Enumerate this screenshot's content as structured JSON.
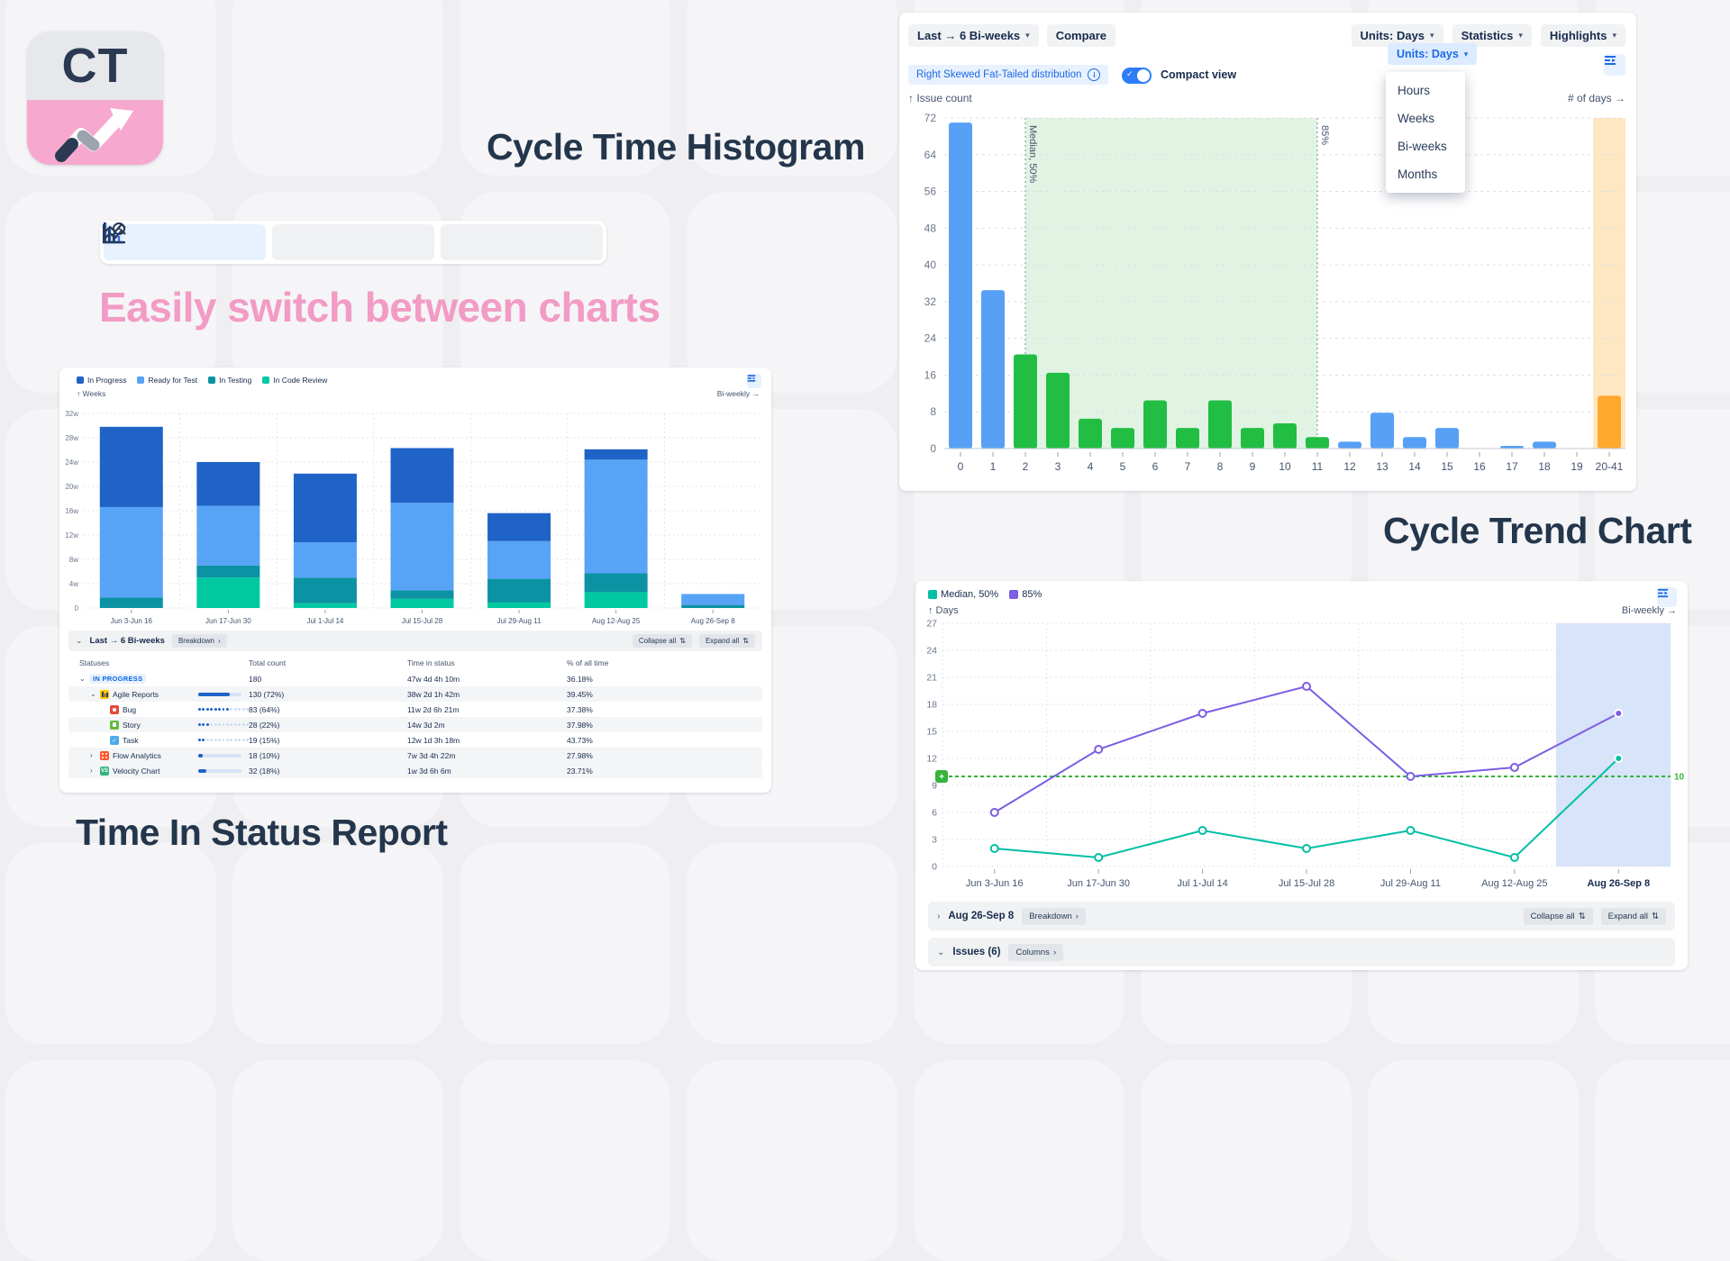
{
  "titles": {
    "histogram": "Cycle Time Histogram",
    "switch": "Easily switch between charts",
    "time_in_status": "Time In Status Report",
    "trend": "Cycle Trend Chart"
  },
  "logo": {
    "text": "CT"
  },
  "icons": {
    "chevron_down": "⌄",
    "chevron_right": "›",
    "caret_down": "▾",
    "sort_both": "⇅",
    "info": "i",
    "check": "✓",
    "plus": "+"
  },
  "colors": {
    "accent_blue": "#0C66E4",
    "navy": "#172B4D",
    "pink": "#F29BC5",
    "hist_blue": "#57A0F5",
    "hist_green": "#21BE43",
    "hist_orange": "#FFA82D",
    "region_green": "#E1F4E3",
    "band_orange": "#FFE7C2",
    "trend_teal": "#00BFA5",
    "trend_purple": "#7C5DE4",
    "threshold_green": "#36B33A",
    "trend_band_blue": "#D7E4F9"
  },
  "hist_panel": {
    "toolbar": {
      "range": "Last → 6 Bi-weeks",
      "compare": "Compare",
      "units": "Units: Days",
      "statistics": "Statistics",
      "highlights": "Highlights"
    },
    "subbar": {
      "distribution": "Right Skewed Fat-Tailed distribution",
      "compact": "Compact view",
      "units_open": "Units: Days"
    },
    "dropdown": [
      "Hours",
      "Weeks",
      "Bi-weeks",
      "Months"
    ],
    "axis": {
      "y": "↑ Issue count",
      "x": "# of days →"
    }
  },
  "tis_panel": {
    "legend": [
      {
        "label": "In Progress",
        "color": "#1F63C6"
      },
      {
        "label": "Ready for Test",
        "color": "#57A3F6"
      },
      {
        "label": "In Testing",
        "color": "#0B93A3"
      },
      {
        "label": "In Code Review",
        "color": "#00C9A2"
      }
    ],
    "axis": {
      "y": "↑ Weeks",
      "x": "Bi-weekly →"
    },
    "header": {
      "title": "Last → 6 Bi-weeks",
      "breakdown": "Breakdown",
      "collapse_all": "Collapse all",
      "expand_all": "Expand all"
    },
    "columns": [
      "Statuses",
      "Total count",
      "Time in status",
      "% of all time"
    ],
    "rows": [
      {
        "level": 0,
        "chevron": "down",
        "badge": true,
        "label": "IN PROGRESS",
        "count": "180",
        "time": "47w 4d 4h 10m",
        "pct": "36.18%",
        "shaded": false
      },
      {
        "level": 1,
        "chevron": "down",
        "icon": "agile-reports",
        "label": "Agile Reports",
        "bar": {
          "style": "solid",
          "pct": 72
        },
        "count": "130 (72%)",
        "time": "38w 2d 1h 42m",
        "pct": "39.45%",
        "shaded": true
      },
      {
        "level": 2,
        "icon": "bug",
        "label": "Bug",
        "bar": {
          "style": "dots",
          "filled": 8,
          "total": 13
        },
        "count": "83 (64%)",
        "time": "11w 2d 6h 21m",
        "pct": "37.38%",
        "shaded": false
      },
      {
        "level": 2,
        "icon": "story",
        "label": "Story",
        "bar": {
          "style": "dots",
          "filled": 3,
          "total": 13
        },
        "count": "28 (22%)",
        "time": "14w 3d 2m",
        "pct": "37.98%",
        "shaded": true
      },
      {
        "level": 2,
        "icon": "task",
        "label": "Task",
        "bar": {
          "style": "dots",
          "filled": 2,
          "total": 13
        },
        "count": "19 (15%)",
        "time": "12w 1d 3h 18m",
        "pct": "43.73%",
        "shaded": false
      },
      {
        "level": 1,
        "chevron": "right",
        "icon": "flow-analytics",
        "label": "Flow Analytics",
        "bar": {
          "style": "solid",
          "pct": 10
        },
        "count": "18 (10%)",
        "time": "7w 3d 4h 22m",
        "pct": "27.98%",
        "shaded": true
      },
      {
        "level": 1,
        "chevron": "right",
        "icon": "velocity-chart",
        "label": "Velocity Chart",
        "bar": {
          "style": "solid",
          "pct": 18
        },
        "count": "32 (18%)",
        "time": "1w 3d 6h 6m",
        "pct": "23.71%",
        "shaded": true
      }
    ]
  },
  "trend_panel": {
    "axis": {
      "y": "↑ Days",
      "x": "Bi-weekly →"
    },
    "bars": {
      "row1_title": "Aug 26-Sep 8",
      "breakdown": "Breakdown",
      "collapse_all": "Collapse all",
      "expand_all": "Expand all",
      "row2_title": "Issues (6)",
      "columns": "Columns"
    }
  },
  "chart_data": [
    {
      "type": "bar",
      "title": "Cycle Time Histogram",
      "xlabel": "# of days →",
      "ylabel": "↑ Issue count",
      "categories": [
        "0",
        "1",
        "2",
        "3",
        "4",
        "5",
        "6",
        "7",
        "8",
        "9",
        "10",
        "11",
        "12",
        "13",
        "14",
        "15",
        "16",
        "17",
        "18",
        "19",
        "20-41"
      ],
      "values": [
        71,
        34.5,
        20.5,
        16.5,
        6.5,
        4.5,
        10.5,
        4.5,
        10.5,
        4.5,
        5.5,
        2.5,
        1.5,
        7.8,
        2.5,
        4.5,
        0,
        0.6,
        1.5,
        0,
        11.5
      ],
      "bar_colors": [
        "#57A0F5",
        "#57A0F5",
        "#21BE43",
        "#21BE43",
        "#21BE43",
        "#21BE43",
        "#21BE43",
        "#21BE43",
        "#21BE43",
        "#21BE43",
        "#21BE43",
        "#21BE43",
        "#57A0F5",
        "#57A0F5",
        "#57A0F5",
        "#57A0F5",
        "#57A0F5",
        "#57A0F5",
        "#57A0F5",
        "#57A0F5",
        "#FFA82D"
      ],
      "ylim": [
        0,
        72
      ],
      "yticks": [
        0,
        8,
        16,
        24,
        32,
        40,
        48,
        56,
        64,
        72
      ],
      "median_label": "Median, 50%",
      "median_index": 2,
      "p85_label": "85%",
      "p85_index": 11,
      "highlight_band_index": 20,
      "grid": true
    },
    {
      "type": "bar",
      "stacked": true,
      "title": "Time In Status Report",
      "ylabel": "↑ Weeks",
      "xlabel_right": "Bi-weekly →",
      "categories": [
        "Jun 3-Jun 16",
        "Jun 17-Jun 30",
        "Jul 1-Jul 14",
        "Jul 15-Jul 28",
        "Jul 29-Aug 11",
        "Aug 12-Aug 25",
        "Aug 26-Sep 8"
      ],
      "series": [
        {
          "name": "In Code Review",
          "color": "#00C9A2",
          "values": [
            0,
            5,
            0.8,
            1.5,
            0.9,
            2.6,
            0
          ]
        },
        {
          "name": "In Testing",
          "color": "#0B93A3",
          "values": [
            1.7,
            2,
            4.2,
            1.4,
            3.9,
            3.1,
            0.5
          ]
        },
        {
          "name": "Ready for Test",
          "color": "#57A3F6",
          "values": [
            14.9,
            9.8,
            5.8,
            14.4,
            6.2,
            18.7,
            1.8
          ]
        },
        {
          "name": "In Progress",
          "color": "#1F63C6",
          "values": [
            13.2,
            7.2,
            11.3,
            9,
            4.6,
            1.7,
            0
          ]
        }
      ],
      "ylim": [
        0,
        32
      ],
      "yticks": [
        0,
        4,
        8,
        12,
        16,
        20,
        24,
        28,
        32
      ],
      "ytick_suffix": "w",
      "grid": true,
      "legend_position": "top-left"
    },
    {
      "type": "line",
      "title": "Cycle Trend Chart",
      "ylabel": "↑ Days",
      "xlabel_right": "Bi-weekly →",
      "categories": [
        "Jun 3-Jun 16",
        "Jun 17-Jun 30",
        "Jul 1-Jul 14",
        "Jul 15-Jul 28",
        "Jul 29-Aug 11",
        "Aug 12-Aug 25",
        "Aug 26-Sep 8"
      ],
      "series": [
        {
          "name": "Median, 50%",
          "color": "#00BFA5",
          "values": [
            2,
            1,
            4,
            2,
            4,
            1,
            12
          ]
        },
        {
          "name": "85%",
          "color": "#7C5DE4",
          "values": [
            6,
            13,
            17,
            20,
            10,
            11,
            17
          ]
        }
      ],
      "threshold": {
        "value": 10,
        "label": "10",
        "color": "#36B33A"
      },
      "highlight_last_category": true,
      "ylim": [
        0,
        27
      ],
      "yticks": [
        0,
        3,
        6,
        9,
        12,
        15,
        18,
        21,
        24,
        27
      ],
      "grid": true,
      "legend_position": "top-left"
    }
  ]
}
